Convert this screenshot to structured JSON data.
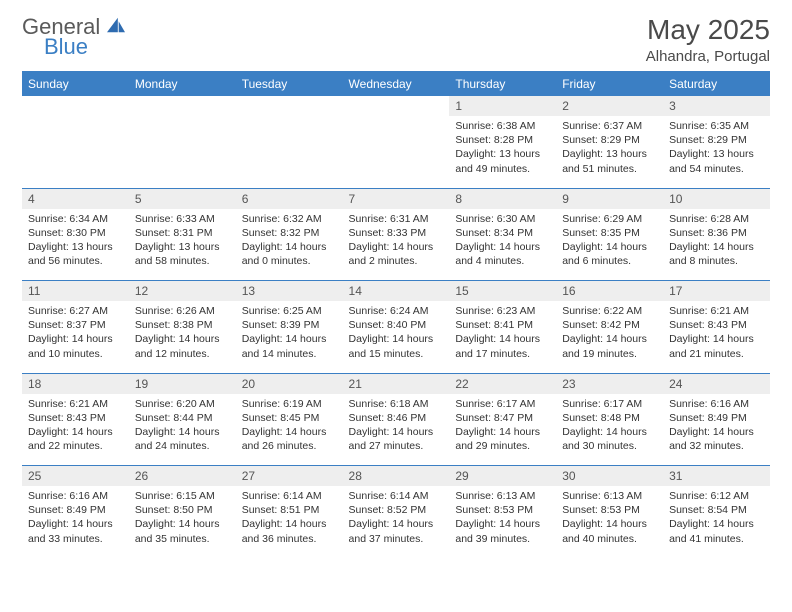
{
  "logo": {
    "word1": "General",
    "word2": "Blue"
  },
  "colors": {
    "accent": "#3b7fc4",
    "header_bg": "#3b7fc4",
    "header_text": "#ffffff",
    "daynum_bg": "#eeeeee",
    "divider": "#3b7fc4",
    "body_text": "#333333",
    "muted_text": "#555555",
    "background": "#ffffff"
  },
  "title": "May 2025",
  "location": "Alhandra, Portugal",
  "day_headers": [
    "Sunday",
    "Monday",
    "Tuesday",
    "Wednesday",
    "Thursday",
    "Friday",
    "Saturday"
  ],
  "weeks": [
    {
      "nums": [
        "",
        "",
        "",
        "",
        "1",
        "2",
        "3"
      ],
      "cells": [
        null,
        null,
        null,
        null,
        {
          "sunrise": "Sunrise: 6:38 AM",
          "sunset": "Sunset: 8:28 PM",
          "daylight": "Daylight: 13 hours and 49 minutes."
        },
        {
          "sunrise": "Sunrise: 6:37 AM",
          "sunset": "Sunset: 8:29 PM",
          "daylight": "Daylight: 13 hours and 51 minutes."
        },
        {
          "sunrise": "Sunrise: 6:35 AM",
          "sunset": "Sunset: 8:29 PM",
          "daylight": "Daylight: 13 hours and 54 minutes."
        }
      ]
    },
    {
      "nums": [
        "4",
        "5",
        "6",
        "7",
        "8",
        "9",
        "10"
      ],
      "cells": [
        {
          "sunrise": "Sunrise: 6:34 AM",
          "sunset": "Sunset: 8:30 PM",
          "daylight": "Daylight: 13 hours and 56 minutes."
        },
        {
          "sunrise": "Sunrise: 6:33 AM",
          "sunset": "Sunset: 8:31 PM",
          "daylight": "Daylight: 13 hours and 58 minutes."
        },
        {
          "sunrise": "Sunrise: 6:32 AM",
          "sunset": "Sunset: 8:32 PM",
          "daylight": "Daylight: 14 hours and 0 minutes."
        },
        {
          "sunrise": "Sunrise: 6:31 AM",
          "sunset": "Sunset: 8:33 PM",
          "daylight": "Daylight: 14 hours and 2 minutes."
        },
        {
          "sunrise": "Sunrise: 6:30 AM",
          "sunset": "Sunset: 8:34 PM",
          "daylight": "Daylight: 14 hours and 4 minutes."
        },
        {
          "sunrise": "Sunrise: 6:29 AM",
          "sunset": "Sunset: 8:35 PM",
          "daylight": "Daylight: 14 hours and 6 minutes."
        },
        {
          "sunrise": "Sunrise: 6:28 AM",
          "sunset": "Sunset: 8:36 PM",
          "daylight": "Daylight: 14 hours and 8 minutes."
        }
      ]
    },
    {
      "nums": [
        "11",
        "12",
        "13",
        "14",
        "15",
        "16",
        "17"
      ],
      "cells": [
        {
          "sunrise": "Sunrise: 6:27 AM",
          "sunset": "Sunset: 8:37 PM",
          "daylight": "Daylight: 14 hours and 10 minutes."
        },
        {
          "sunrise": "Sunrise: 6:26 AM",
          "sunset": "Sunset: 8:38 PM",
          "daylight": "Daylight: 14 hours and 12 minutes."
        },
        {
          "sunrise": "Sunrise: 6:25 AM",
          "sunset": "Sunset: 8:39 PM",
          "daylight": "Daylight: 14 hours and 14 minutes."
        },
        {
          "sunrise": "Sunrise: 6:24 AM",
          "sunset": "Sunset: 8:40 PM",
          "daylight": "Daylight: 14 hours and 15 minutes."
        },
        {
          "sunrise": "Sunrise: 6:23 AM",
          "sunset": "Sunset: 8:41 PM",
          "daylight": "Daylight: 14 hours and 17 minutes."
        },
        {
          "sunrise": "Sunrise: 6:22 AM",
          "sunset": "Sunset: 8:42 PM",
          "daylight": "Daylight: 14 hours and 19 minutes."
        },
        {
          "sunrise": "Sunrise: 6:21 AM",
          "sunset": "Sunset: 8:43 PM",
          "daylight": "Daylight: 14 hours and 21 minutes."
        }
      ]
    },
    {
      "nums": [
        "18",
        "19",
        "20",
        "21",
        "22",
        "23",
        "24"
      ],
      "cells": [
        {
          "sunrise": "Sunrise: 6:21 AM",
          "sunset": "Sunset: 8:43 PM",
          "daylight": "Daylight: 14 hours and 22 minutes."
        },
        {
          "sunrise": "Sunrise: 6:20 AM",
          "sunset": "Sunset: 8:44 PM",
          "daylight": "Daylight: 14 hours and 24 minutes."
        },
        {
          "sunrise": "Sunrise: 6:19 AM",
          "sunset": "Sunset: 8:45 PM",
          "daylight": "Daylight: 14 hours and 26 minutes."
        },
        {
          "sunrise": "Sunrise: 6:18 AM",
          "sunset": "Sunset: 8:46 PM",
          "daylight": "Daylight: 14 hours and 27 minutes."
        },
        {
          "sunrise": "Sunrise: 6:17 AM",
          "sunset": "Sunset: 8:47 PM",
          "daylight": "Daylight: 14 hours and 29 minutes."
        },
        {
          "sunrise": "Sunrise: 6:17 AM",
          "sunset": "Sunset: 8:48 PM",
          "daylight": "Daylight: 14 hours and 30 minutes."
        },
        {
          "sunrise": "Sunrise: 6:16 AM",
          "sunset": "Sunset: 8:49 PM",
          "daylight": "Daylight: 14 hours and 32 minutes."
        }
      ]
    },
    {
      "nums": [
        "25",
        "26",
        "27",
        "28",
        "29",
        "30",
        "31"
      ],
      "cells": [
        {
          "sunrise": "Sunrise: 6:16 AM",
          "sunset": "Sunset: 8:49 PM",
          "daylight": "Daylight: 14 hours and 33 minutes."
        },
        {
          "sunrise": "Sunrise: 6:15 AM",
          "sunset": "Sunset: 8:50 PM",
          "daylight": "Daylight: 14 hours and 35 minutes."
        },
        {
          "sunrise": "Sunrise: 6:14 AM",
          "sunset": "Sunset: 8:51 PM",
          "daylight": "Daylight: 14 hours and 36 minutes."
        },
        {
          "sunrise": "Sunrise: 6:14 AM",
          "sunset": "Sunset: 8:52 PM",
          "daylight": "Daylight: 14 hours and 37 minutes."
        },
        {
          "sunrise": "Sunrise: 6:13 AM",
          "sunset": "Sunset: 8:53 PM",
          "daylight": "Daylight: 14 hours and 39 minutes."
        },
        {
          "sunrise": "Sunrise: 6:13 AM",
          "sunset": "Sunset: 8:53 PM",
          "daylight": "Daylight: 14 hours and 40 minutes."
        },
        {
          "sunrise": "Sunrise: 6:12 AM",
          "sunset": "Sunset: 8:54 PM",
          "daylight": "Daylight: 14 hours and 41 minutes."
        }
      ]
    }
  ]
}
